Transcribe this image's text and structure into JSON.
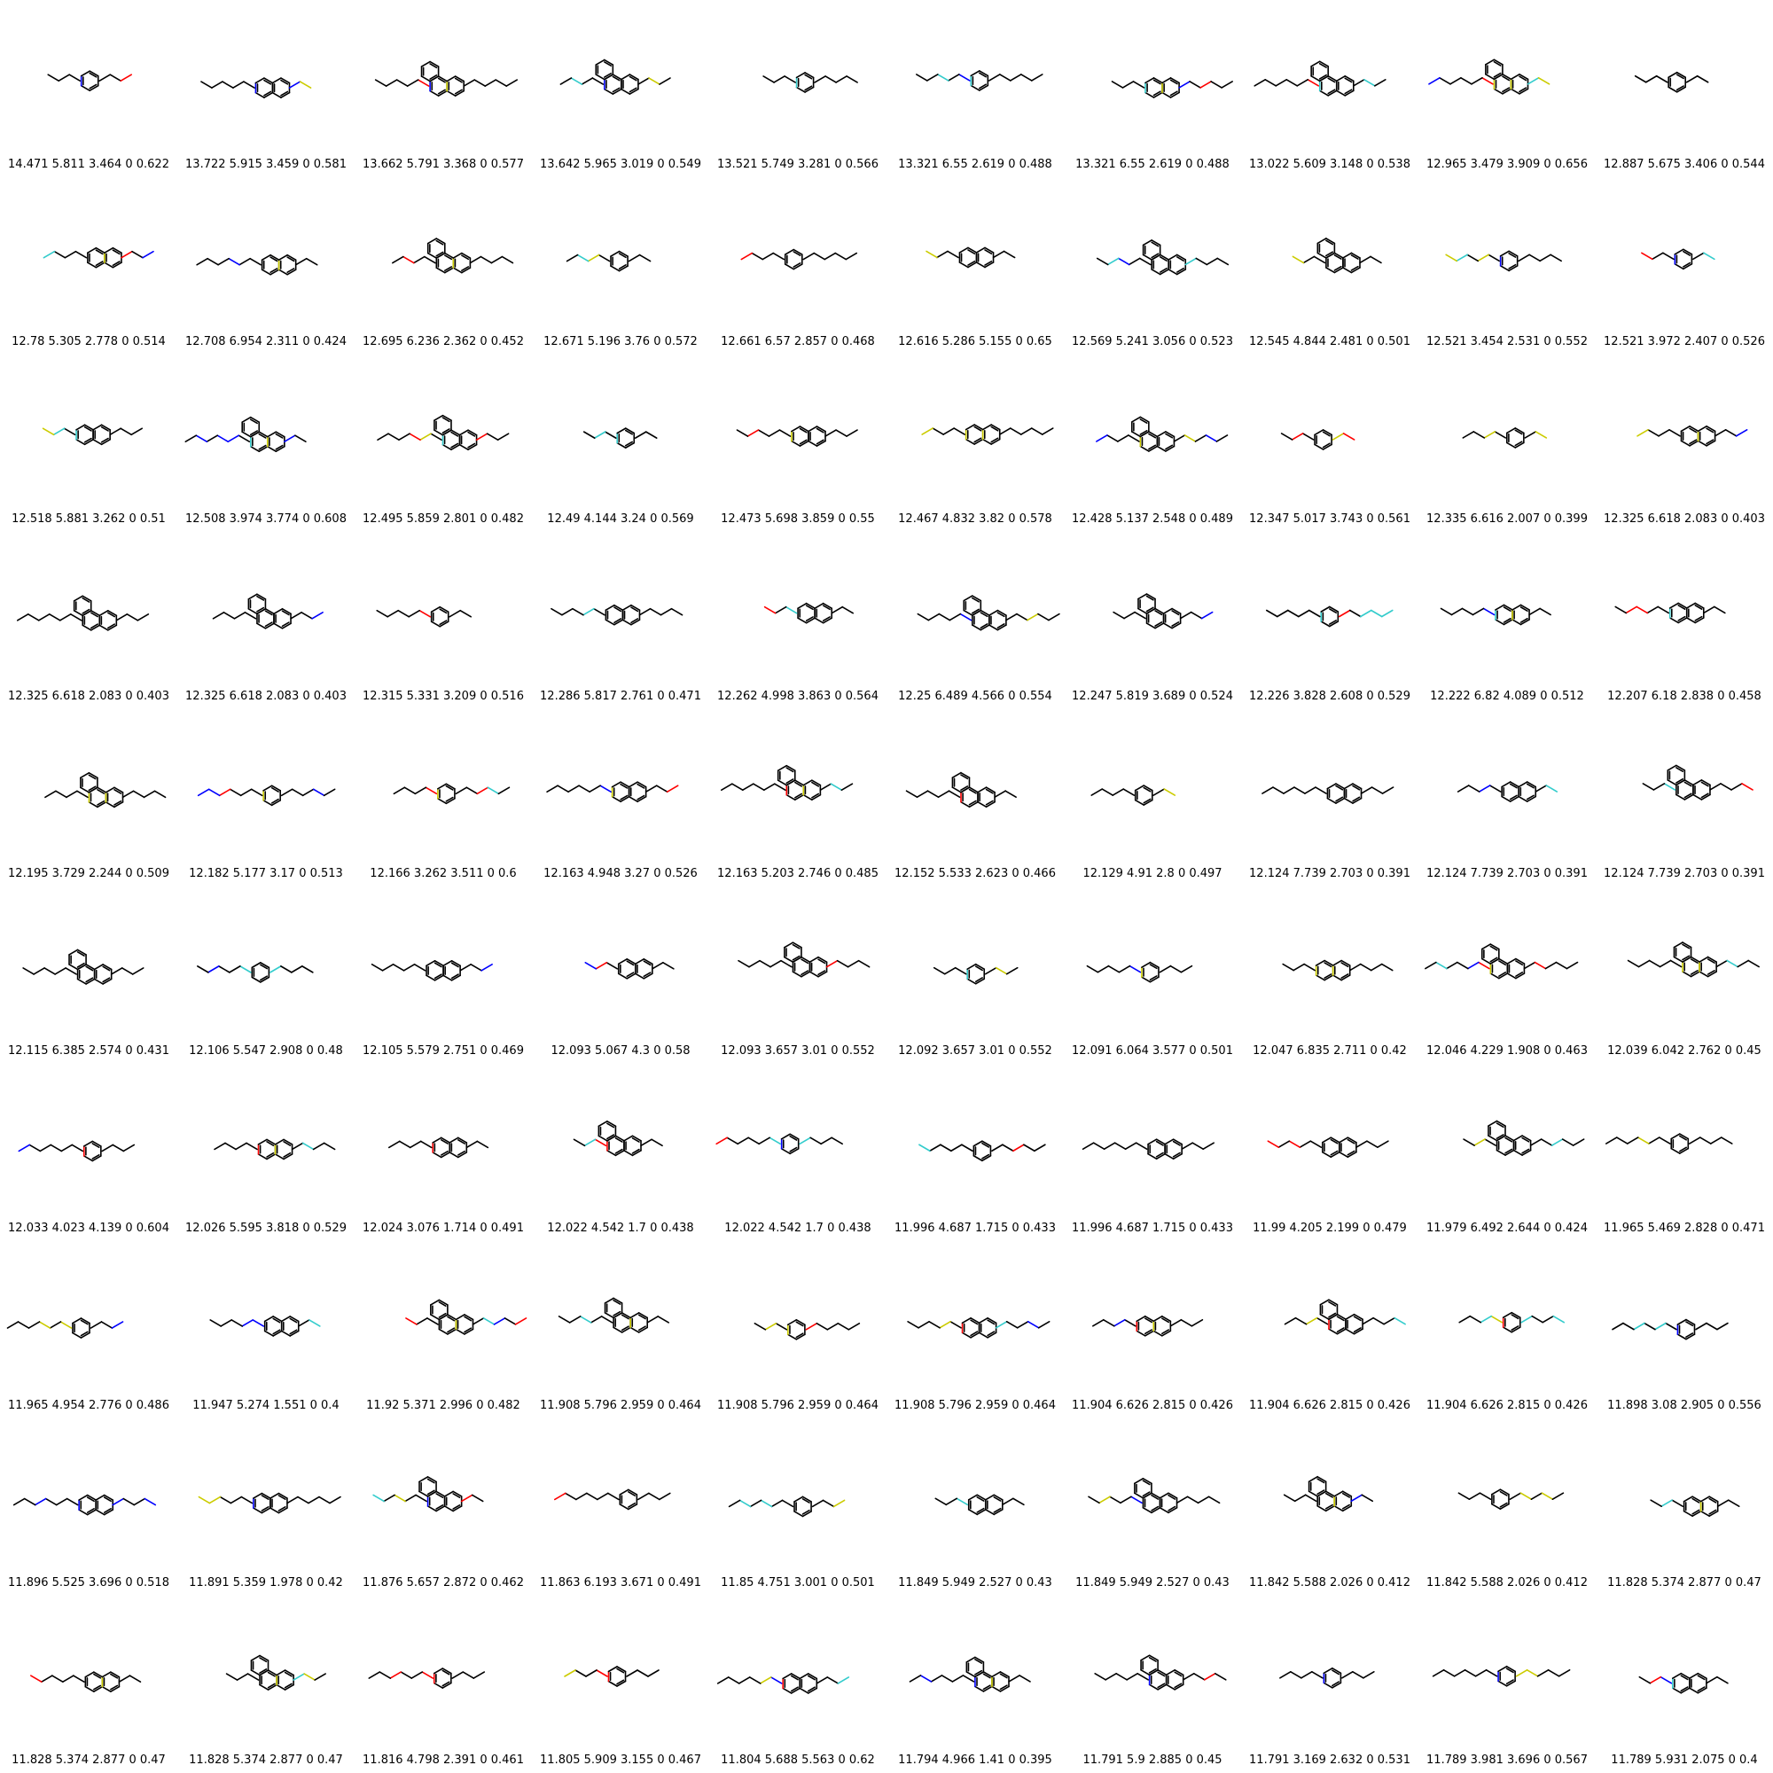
{
  "colors": {
    "bond": "#000000",
    "S": "#CCCC00",
    "O": "#FF0000",
    "N": "#0000FF",
    "F": "#33CCCC"
  },
  "captions": [
    "14.471 5.811 3.464 0 0.622",
    "13.722 5.915 3.459 0 0.581",
    "13.662 5.791 3.368 0 0.577",
    "13.642 5.965 3.019 0 0.549",
    "13.521 5.749 3.281 0 0.566",
    "13.321 6.55 2.619 0 0.488",
    "13.321 6.55 2.619 0 0.488",
    "13.022 5.609 3.148 0 0.538",
    "12.965 3.479 3.909 0 0.656",
    "12.887 5.675 3.406 0 0.544",
    "12.78 5.305 2.778 0 0.514",
    "12.708 6.954 2.311 0 0.424",
    "12.695 6.236 2.362 0 0.452",
    "12.671 5.196 3.76 0 0.572",
    "12.661 6.57 2.857 0 0.468",
    "12.616 5.286 5.155 0 0.65",
    "12.569 5.241 3.056 0 0.523",
    "12.545 4.844 2.481 0 0.501",
    "12.521 3.454 2.531 0 0.552",
    "12.521 3.972 2.407 0 0.526",
    "12.518 5.881 3.262 0 0.51",
    "12.508 3.974 3.774 0 0.608",
    "12.495 5.859 2.801 0 0.482",
    "12.49 4.144 3.24 0 0.569",
    "12.473 5.698 3.859 0 0.55",
    "12.467 4.832 3.82 0 0.578",
    "12.428 5.137 2.548 0 0.489",
    "12.347 5.017 3.743 0 0.561",
    "12.335 6.616 2.007 0 0.399",
    "12.325 6.618 2.083 0 0.403",
    "12.325 6.618 2.083 0 0.403",
    "12.325 6.618 2.083 0 0.403",
    "12.315 5.331 3.209 0 0.516",
    "12.286 5.817 2.761 0 0.471",
    "12.262 4.998 3.863 0 0.564",
    "12.25 6.489 4.566 0 0.554",
    "12.247 5.819 3.689 0 0.524",
    "12.226 3.828 2.608 0 0.529",
    "12.222 6.82 4.089 0 0.512",
    "12.207 6.18 2.838 0 0.458",
    "12.195 3.729 2.244 0 0.509",
    "12.182 5.177 3.17 0 0.513",
    "12.166 3.262 3.511 0 0.6",
    "12.163 4.948 3.27 0 0.526",
    "12.163 5.203 2.746 0 0.485",
    "12.152 5.533 2.623 0 0.466",
    "12.129 4.91 2.8 0 0.497",
    "12.124 7.739 2.703 0 0.391",
    "12.124 7.739 2.703 0 0.391",
    "12.124 7.739 2.703 0 0.391",
    "12.115 6.385 2.574 0 0.431",
    "12.106 5.547 2.908 0 0.48",
    "12.105 5.579 2.751 0 0.469",
    "12.093 5.067 4.3 0 0.58",
    "12.093 3.657 3.01 0 0.552",
    "12.092 3.657 3.01 0 0.552",
    "12.091 6.064 3.577 0 0.501",
    "12.047 6.835 2.711 0 0.42",
    "12.046 4.229 1.908 0 0.463",
    "12.039 6.042 2.762 0 0.45",
    "12.033 4.023 4.139 0 0.604",
    "12.026 5.595 3.818 0 0.529",
    "12.024 3.076 1.714 0 0.491",
    "12.022 4.542 1.7 0 0.438",
    "12.022 4.542 1.7 0 0.438",
    "11.996 4.687 1.715 0 0.433",
    "11.996 4.687 1.715 0 0.433",
    "11.99 4.205 2.199 0 0.479",
    "11.979 6.492 2.644 0 0.424",
    "11.965 5.469 2.828 0 0.471",
    "11.965 4.954 2.776 0 0.486",
    "11.947 5.274 1.551 0 0.4",
    "11.92 5.371 2.996 0 0.482",
    "11.908 5.796 2.959 0 0.464",
    "11.908 5.796 2.959 0 0.464",
    "11.908 5.796 2.959 0 0.464",
    "11.904 6.626 2.815 0 0.426",
    "11.904 6.626 2.815 0 0.426",
    "11.904 6.626 2.815 0 0.426",
    "11.898 3.08 2.905 0 0.556",
    "11.896 5.525 3.696 0 0.518",
    "11.891 5.359 1.978 0 0.42",
    "11.876 5.657 2.872 0 0.462",
    "11.863 6.193 3.671 0 0.491",
    "11.85 4.751 3.001 0 0.501",
    "11.849 5.949 2.527 0 0.43",
    "11.849 5.949 2.527 0 0.43",
    "11.842 5.588 2.026 0 0.412",
    "11.842 5.588 2.026 0 0.412",
    "11.828 5.374 2.877 0 0.47",
    "11.828 5.374 2.877 0 0.47",
    "11.828 5.374 2.877 0 0.47",
    "11.816 4.798 2.391 0 0.461",
    "11.805 5.909 3.155 0 0.467",
    "11.804 5.688 5.563 0 0.62",
    "11.794 4.966 1.41 0 0.395",
    "11.791 5.9 2.885 0 0.45",
    "11.791 3.169 2.632 0 0.531",
    "11.789 3.981 3.696 0 0.567",
    "11.789 5.931 2.075 0 0.4"
  ]
}
